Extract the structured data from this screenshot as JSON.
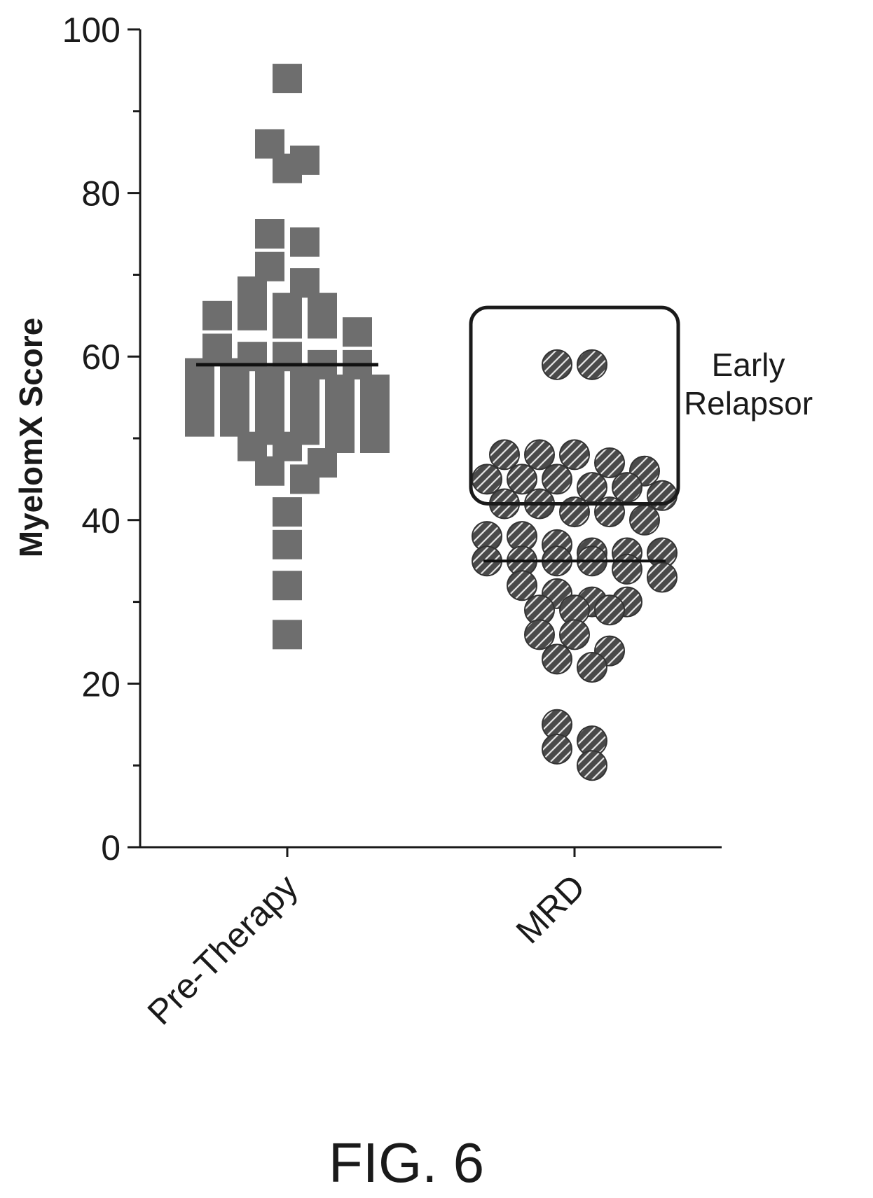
{
  "chart_data": {
    "type": "scatter",
    "ylabel": "MyelomX Score",
    "xlabel": "",
    "ylim": [
      0,
      100
    ],
    "yticks": [
      0,
      20,
      40,
      60,
      80,
      100
    ],
    "yticks_minor": [
      10,
      30,
      50,
      70,
      90
    ],
    "grid": false,
    "categories": [
      "Pre-Therapy",
      "MRD"
    ],
    "annotation": {
      "lines": [
        "Early",
        "Relapsor"
      ],
      "box_y_range": [
        42,
        66
      ],
      "target": "MRD"
    },
    "series": [
      {
        "category": "Pre-Therapy",
        "marker": "square",
        "color": "#6e6e6e",
        "median": 59,
        "values": [
          94,
          86,
          84,
          83,
          75,
          74,
          71,
          69,
          68,
          66,
          66,
          65,
          65,
          64,
          64,
          63,
          61,
          60,
          60,
          59,
          59,
          58,
          58,
          57,
          57,
          56,
          56,
          55,
          55,
          54,
          54,
          53,
          53,
          52,
          52,
          51,
          51,
          50,
          50,
          49,
          49,
          47,
          46,
          45,
          41,
          37,
          32,
          26
        ]
      },
      {
        "category": "MRD",
        "marker": "hatched-circle",
        "color": "#4a4a4a",
        "median": 35,
        "values": [
          59,
          59,
          48,
          48,
          48,
          47,
          46,
          45,
          45,
          45,
          44,
          44,
          43,
          42,
          42,
          41,
          41,
          40,
          38,
          38,
          37,
          36,
          36,
          36,
          35,
          35,
          35,
          35,
          34,
          33,
          32,
          31,
          30,
          30,
          29,
          29,
          29,
          26,
          26,
          24,
          23,
          22,
          15,
          13,
          12,
          10
        ]
      }
    ]
  },
  "figure_caption": "FIG. 6"
}
